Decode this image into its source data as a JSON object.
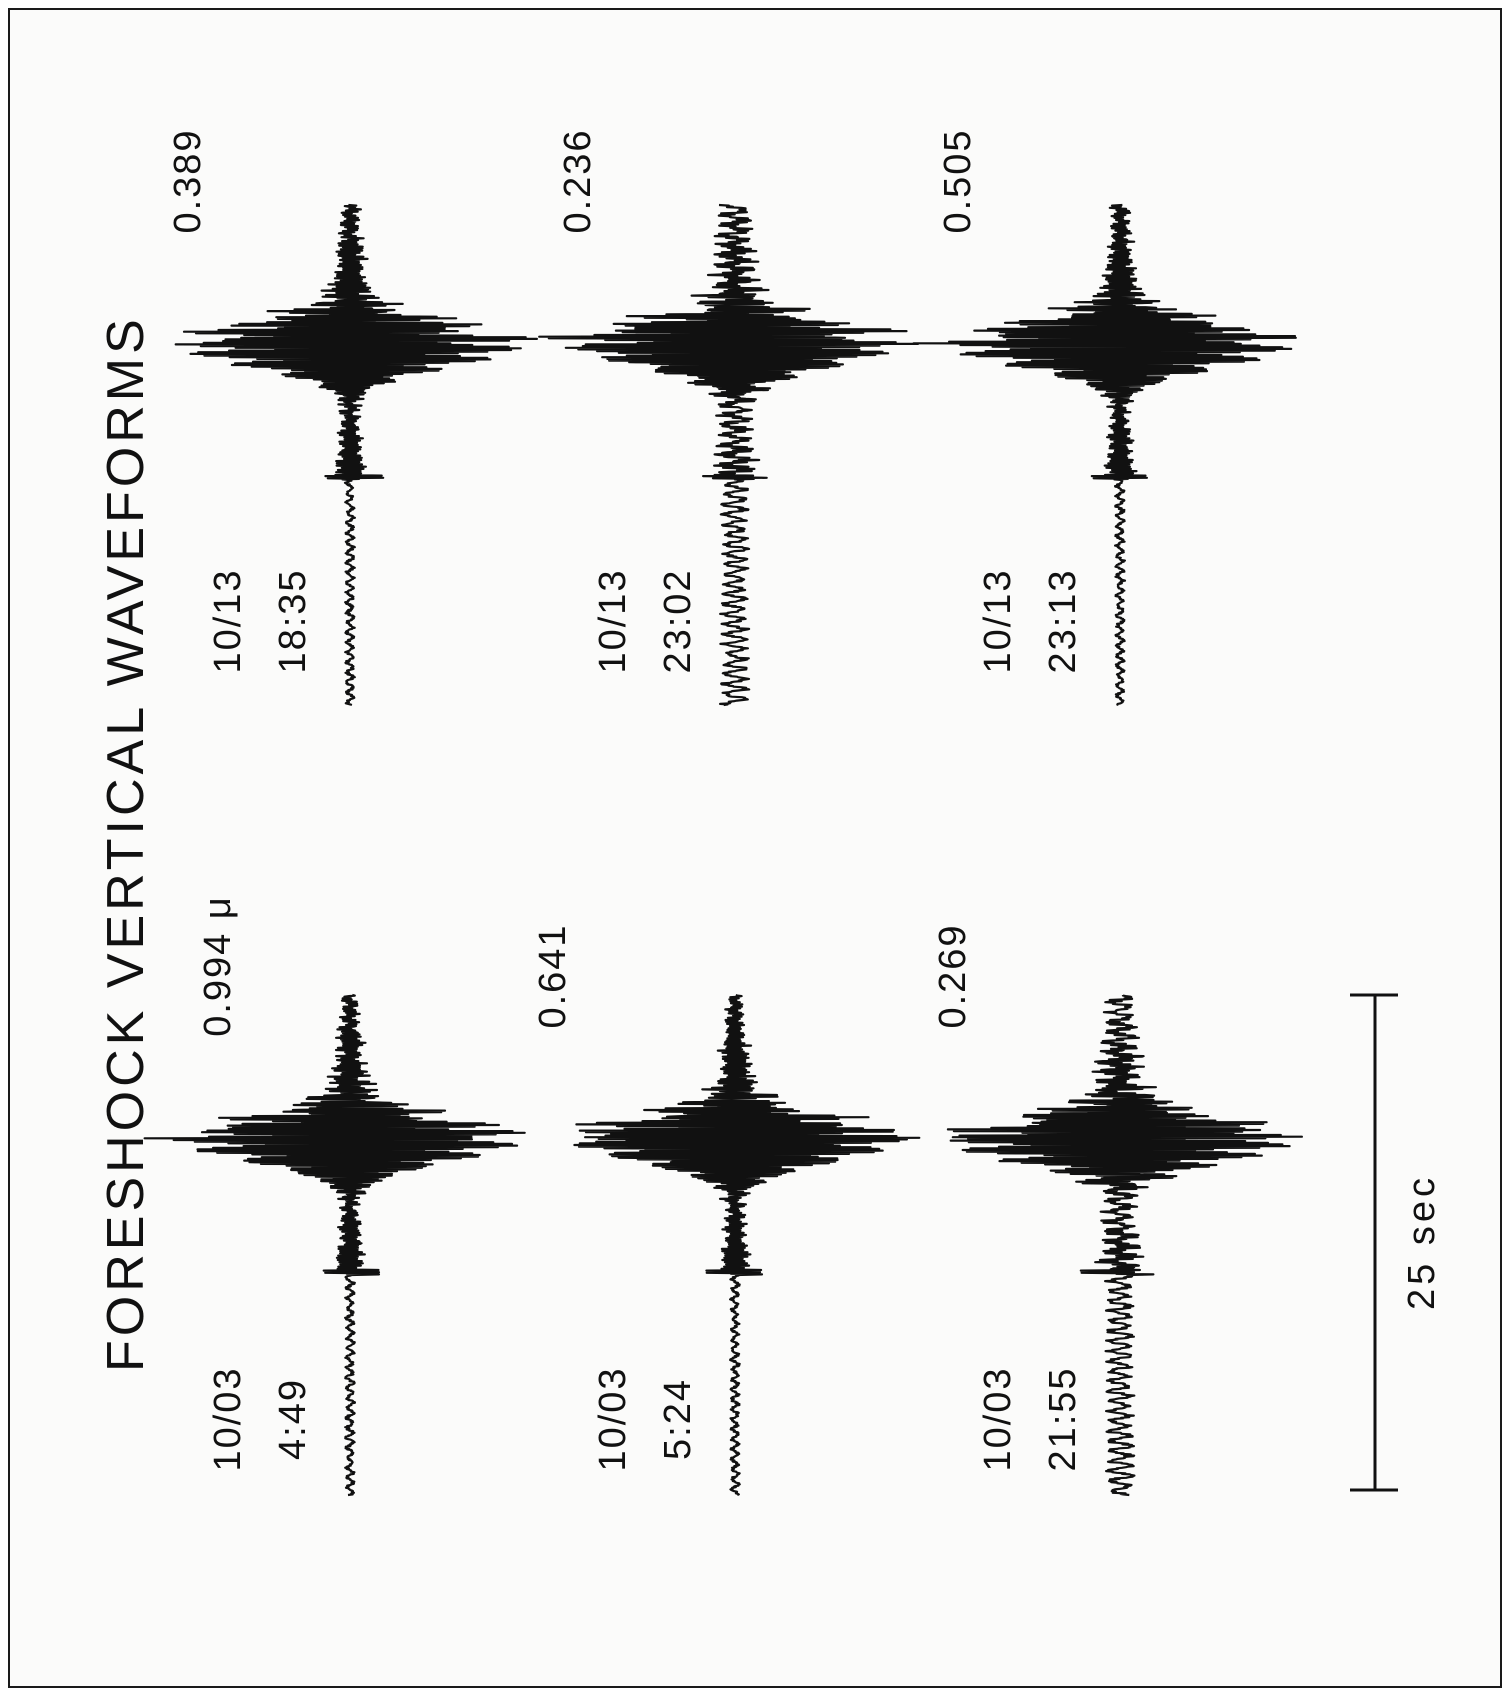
{
  "figure": {
    "title": "FORESHOCK VERTICAL WAVEFORMS",
    "scale_bar_label": "25 sec"
  },
  "traces": [
    {
      "date": "10/03",
      "time": "4:49",
      "amplitude": "0.994 μ",
      "row": 0,
      "col": 0
    },
    {
      "date": "10/03",
      "time": "5:24",
      "amplitude": "0.641",
      "row": 0,
      "col": 1
    },
    {
      "date": "10/03",
      "time": "21:55",
      "amplitude": "0.269",
      "row": 0,
      "col": 2
    },
    {
      "date": "10/13",
      "time": "18:35",
      "amplitude": "0.389",
      "row": 1,
      "col": 0
    },
    {
      "date": "10/13",
      "time": "23:02",
      "amplitude": "0.236",
      "row": 1,
      "col": 1
    },
    {
      "date": "10/13",
      "time": "23:13",
      "amplitude": "0.505",
      "row": 1,
      "col": 2
    }
  ],
  "colors": {
    "ink": "#111111",
    "background": "#fbfbfa"
  }
}
